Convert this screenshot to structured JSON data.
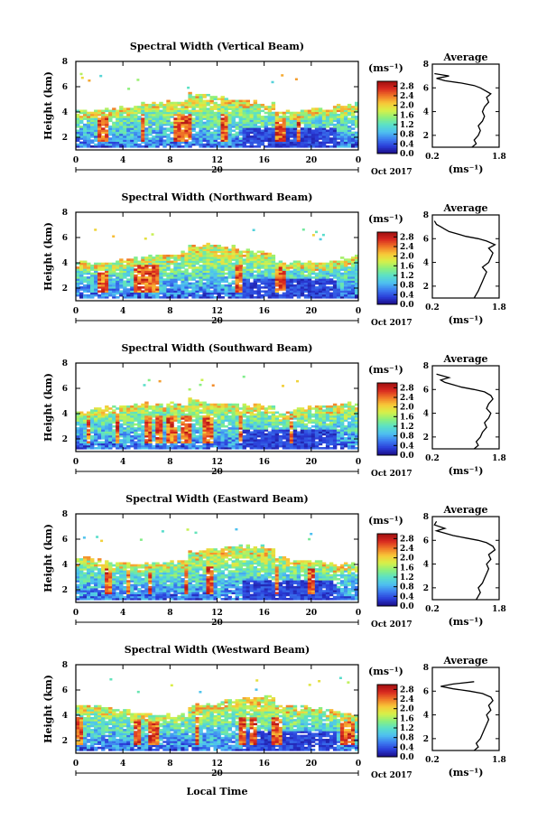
{
  "figure": {
    "xlabel": "Local Time",
    "date_label": "Oct 2017",
    "colorbar_unit": "(ms⁻¹)",
    "average_title": "Average",
    "average_xlabel": "(ms⁻¹)"
  },
  "chart_data": [
    {
      "type": "heatmap",
      "title": "Spectral Width (Vertical Beam)",
      "ylabel": "Height (km)",
      "x_ticks": [
        "0",
        "4",
        "8",
        "12",
        "16",
        "20",
        "0"
      ],
      "day_label": "20",
      "xlim": [
        0,
        24
      ],
      "y_ticks": [
        "2",
        "4",
        "6",
        "8"
      ],
      "ylim": [
        1,
        8
      ],
      "colorbar_ticks": [
        "0.0",
        "0.4",
        "0.8",
        "1.2",
        "1.6",
        "2.0",
        "2.4",
        "2.8"
      ],
      "colorbar_range": [
        0,
        3.0
      ],
      "color_scale": [
        "#1a0a80",
        "#2a3cd8",
        "#3c7cf0",
        "#4ec0f0",
        "#5ae0c8",
        "#8cf07c",
        "#d8f048",
        "#f8c838",
        "#f07828",
        "#d82820",
        "#a01010"
      ],
      "average": {
        "xlim": [
          0.2,
          1.8
        ],
        "x_ticks": [
          "0.2",
          "1.8"
        ],
        "ylim": [
          1,
          8
        ],
        "y_ticks": [
          "2",
          "4",
          "6",
          "8"
        ],
        "height": [
          1.0,
          1.3,
          1.6,
          2.0,
          2.4,
          2.8,
          3.2,
          3.6,
          4.0,
          4.4,
          4.8,
          5.2,
          5.5,
          5.8,
          6.0,
          6.2,
          6.4,
          6.6,
          6.8,
          7.0,
          7.2
        ],
        "value": [
          1.15,
          1.25,
          1.2,
          1.3,
          1.35,
          1.3,
          1.4,
          1.45,
          1.4,
          1.45,
          1.55,
          1.5,
          1.6,
          1.45,
          1.35,
          1.2,
          0.9,
          0.5,
          0.3,
          0.6,
          0.25
        ]
      },
      "seed": 11
    },
    {
      "type": "heatmap",
      "title": "Spectral Width (Northward Beam)",
      "ylabel": "Height (km)",
      "x_ticks": [
        "0",
        "4",
        "8",
        "12",
        "16",
        "20",
        "0"
      ],
      "day_label": "20",
      "xlim": [
        0,
        24
      ],
      "y_ticks": [
        "2",
        "4",
        "6",
        "8"
      ],
      "ylim": [
        1,
        8
      ],
      "colorbar_ticks": [
        "0.0",
        "0.4",
        "0.8",
        "1.2",
        "1.6",
        "2.0",
        "2.4",
        "2.8"
      ],
      "colorbar_range": [
        0,
        3.0
      ],
      "color_scale": [
        "#1a0a80",
        "#2a3cd8",
        "#3c7cf0",
        "#4ec0f0",
        "#5ae0c8",
        "#8cf07c",
        "#d8f048",
        "#f8c838",
        "#f07828",
        "#d82820",
        "#a01010"
      ],
      "average": {
        "xlim": [
          0.2,
          1.8
        ],
        "x_ticks": [
          "0.2",
          "1.8"
        ],
        "ylim": [
          1,
          8
        ],
        "y_ticks": [
          "2",
          "4",
          "6",
          "8"
        ],
        "height": [
          1.0,
          1.3,
          1.6,
          2.0,
          2.4,
          2.8,
          3.2,
          3.6,
          4.0,
          4.4,
          4.8,
          5.2,
          5.5,
          5.8,
          6.0,
          6.2,
          6.4,
          6.6,
          6.8,
          7.0,
          7.2,
          7.5
        ],
        "value": [
          1.2,
          1.25,
          1.3,
          1.35,
          1.4,
          1.45,
          1.5,
          1.4,
          1.55,
          1.6,
          1.65,
          1.55,
          1.7,
          1.5,
          1.3,
          1.0,
          0.8,
          0.6,
          0.5,
          0.4,
          0.3,
          0.25
        ]
      },
      "seed": 23
    },
    {
      "type": "heatmap",
      "title": "Spectral Width (Southward Beam)",
      "ylabel": "Height (km)",
      "x_ticks": [
        "0",
        "4",
        "8",
        "12",
        "16",
        "20",
        "0"
      ],
      "day_label": "20",
      "xlim": [
        0,
        24
      ],
      "y_ticks": [
        "2",
        "4",
        "6",
        "8"
      ],
      "ylim": [
        1,
        8
      ],
      "colorbar_ticks": [
        "0.0",
        "0.4",
        "0.8",
        "1.2",
        "1.6",
        "2.0",
        "2.4",
        "2.8"
      ],
      "colorbar_range": [
        0,
        3.0
      ],
      "color_scale": [
        "#1a0a80",
        "#2a3cd8",
        "#3c7cf0",
        "#4ec0f0",
        "#5ae0c8",
        "#8cf07c",
        "#d8f048",
        "#f8c838",
        "#f07828",
        "#d82820",
        "#a01010"
      ],
      "average": {
        "xlim": [
          0.2,
          1.8
        ],
        "x_ticks": [
          "0.2",
          "1.8"
        ],
        "ylim": [
          1,
          8
        ],
        "y_ticks": [
          "2",
          "4",
          "6",
          "8"
        ],
        "height": [
          1.0,
          1.3,
          1.6,
          2.0,
          2.4,
          2.8,
          3.2,
          3.6,
          4.0,
          4.4,
          4.8,
          5.2,
          5.5,
          5.8,
          6.0,
          6.2,
          6.4,
          6.6,
          6.8,
          7.0,
          7.3
        ],
        "value": [
          1.2,
          1.3,
          1.25,
          1.35,
          1.4,
          1.5,
          1.45,
          1.55,
          1.6,
          1.5,
          1.55,
          1.65,
          1.6,
          1.45,
          1.2,
          0.9,
          0.7,
          0.5,
          0.4,
          0.6,
          0.3
        ]
      },
      "seed": 37
    },
    {
      "type": "heatmap",
      "title": "Spectral Width (Eastward Beam)",
      "ylabel": "Height (km)",
      "x_ticks": [
        "0",
        "4",
        "8",
        "12",
        "16",
        "20",
        "0"
      ],
      "day_label": "20",
      "xlim": [
        0,
        24
      ],
      "y_ticks": [
        "2",
        "4",
        "6",
        "8"
      ],
      "ylim": [
        1,
        8
      ],
      "colorbar_ticks": [
        "0.0",
        "0.4",
        "0.8",
        "1.2",
        "1.6",
        "2.0",
        "2.4",
        "2.8"
      ],
      "colorbar_range": [
        0,
        3.0
      ],
      "color_scale": [
        "#1a0a80",
        "#2a3cd8",
        "#3c7cf0",
        "#4ec0f0",
        "#5ae0c8",
        "#8cf07c",
        "#d8f048",
        "#f8c838",
        "#f07828",
        "#d82820",
        "#a01010"
      ],
      "average": {
        "xlim": [
          0.2,
          1.8
        ],
        "x_ticks": [
          "0.2",
          "1.8"
        ],
        "ylim": [
          1,
          8
        ],
        "y_ticks": [
          "2",
          "4",
          "6",
          "8"
        ],
        "height": [
          1.0,
          1.3,
          1.6,
          2.0,
          2.4,
          2.8,
          3.2,
          3.6,
          4.0,
          4.4,
          4.8,
          5.2,
          5.5,
          5.8,
          6.0,
          6.2,
          6.4,
          6.6,
          6.8,
          7.0,
          7.3,
          7.6
        ],
        "value": [
          1.25,
          1.3,
          1.35,
          1.3,
          1.4,
          1.45,
          1.5,
          1.55,
          1.5,
          1.6,
          1.55,
          1.7,
          1.65,
          1.5,
          1.3,
          1.0,
          0.7,
          0.5,
          0.3,
          0.5,
          0.25,
          0.3
        ]
      },
      "seed": 53
    },
    {
      "type": "heatmap",
      "title": "Spectral Width (Westward Beam)",
      "ylabel": "Height (km)",
      "x_ticks": [
        "0",
        "4",
        "8",
        "12",
        "16",
        "20",
        "0"
      ],
      "day_label": "20",
      "xlim": [
        0,
        24
      ],
      "y_ticks": [
        "2",
        "4",
        "6",
        "8"
      ],
      "ylim": [
        1,
        8
      ],
      "colorbar_ticks": [
        "0.0",
        "0.4",
        "0.8",
        "1.2",
        "1.6",
        "2.0",
        "2.4",
        "2.8"
      ],
      "colorbar_range": [
        0,
        3.0
      ],
      "color_scale": [
        "#1a0a80",
        "#2a3cd8",
        "#3c7cf0",
        "#4ec0f0",
        "#5ae0c8",
        "#8cf07c",
        "#d8f048",
        "#f8c838",
        "#f07828",
        "#d82820",
        "#a01010"
      ],
      "average": {
        "xlim": [
          0.2,
          1.8
        ],
        "x_ticks": [
          "0.2",
          "1.8"
        ],
        "ylim": [
          1,
          8
        ],
        "y_ticks": [
          "2",
          "4",
          "6",
          "8"
        ],
        "height": [
          1.0,
          1.3,
          1.6,
          2.0,
          2.4,
          2.8,
          3.2,
          3.6,
          4.0,
          4.4,
          4.8,
          5.2,
          5.5,
          5.8,
          6.0,
          6.2,
          6.4,
          6.6,
          6.8
        ],
        "value": [
          1.2,
          1.3,
          1.25,
          1.35,
          1.4,
          1.45,
          1.5,
          1.55,
          1.5,
          1.6,
          1.55,
          1.65,
          1.6,
          1.4,
          1.1,
          0.7,
          0.4,
          0.7,
          1.2
        ]
      },
      "seed": 71
    }
  ]
}
